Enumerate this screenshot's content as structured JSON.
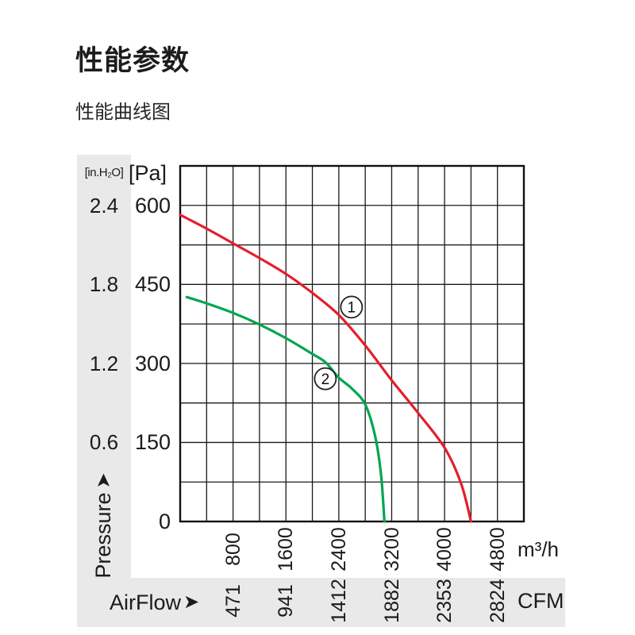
{
  "page": {
    "title": "性能参数",
    "subtitle": "性能曲线图"
  },
  "chart": {
    "pressure_axis": {
      "unit_inh2o": "[in.H₂O]",
      "unit_pa": "[Pa]",
      "inh2o_ticks": [
        "2.4",
        "1.8",
        "1.2",
        "0.6"
      ],
      "pa_ticks": [
        "600",
        "450",
        "300",
        "150",
        "0"
      ],
      "label": "Pressure",
      "arrow": "➤"
    },
    "flow_axis": {
      "m3h_ticks": [
        "800",
        "1600",
        "2400",
        "3200",
        "4000",
        "4800"
      ],
      "cfm_ticks": [
        "471",
        "941",
        "1412",
        "1882",
        "2353",
        "2824"
      ],
      "unit_m3h": "m³/h",
      "unit_cfm": "CFM",
      "label": "AirFlow",
      "arrow": "➤"
    }
  },
  "chart_data": {
    "type": "line",
    "title": "性能曲线图",
    "xlabel": "AirFlow",
    "ylabel": "Pressure",
    "x_unit_primary": "m³/h",
    "x_unit_secondary": "CFM",
    "y_unit_primary": "Pa",
    "y_unit_secondary": "in.H₂O",
    "xlim": [
      0,
      5200
    ],
    "ylim": [
      0,
      675
    ],
    "x_gridstep": 400,
    "y_gridstep": 75,
    "x_ticks_m3h": [
      800,
      1600,
      2400,
      3200,
      4000,
      4800
    ],
    "x_ticks_cfm": [
      471,
      941,
      1412,
      1882,
      2353,
      2824
    ],
    "y_ticks_pa": [
      600,
      450,
      300,
      150,
      0
    ],
    "y_ticks_inh2o": [
      2.4,
      1.8,
      1.2,
      0.6
    ],
    "grid": true,
    "legend_style": "circled numbers on chart",
    "series": [
      {
        "name": "1",
        "color": "#e31e2d",
        "marker": [
          2592,
          407
        ],
        "points": [
          [
            0,
            582
          ],
          [
            400,
            556
          ],
          [
            800,
            528
          ],
          [
            1200,
            500
          ],
          [
            1600,
            470
          ],
          [
            2000,
            434
          ],
          [
            2400,
            392
          ],
          [
            2800,
            334
          ],
          [
            3200,
            268
          ],
          [
            3600,
            206
          ],
          [
            4000,
            140
          ],
          [
            4250,
            72
          ],
          [
            4400,
            0
          ]
        ]
      },
      {
        "name": "2",
        "color": "#00a651",
        "marker": [
          2196,
          271
        ],
        "points": [
          [
            100,
            426
          ],
          [
            400,
            414
          ],
          [
            800,
            396
          ],
          [
            1200,
            374
          ],
          [
            1600,
            348
          ],
          [
            2000,
            318
          ],
          [
            2200,
            302
          ],
          [
            2400,
            273
          ],
          [
            2600,
            252
          ],
          [
            2800,
            222
          ],
          [
            2950,
            162
          ],
          [
            3040,
            88
          ],
          [
            3090,
            0
          ]
        ]
      }
    ]
  }
}
